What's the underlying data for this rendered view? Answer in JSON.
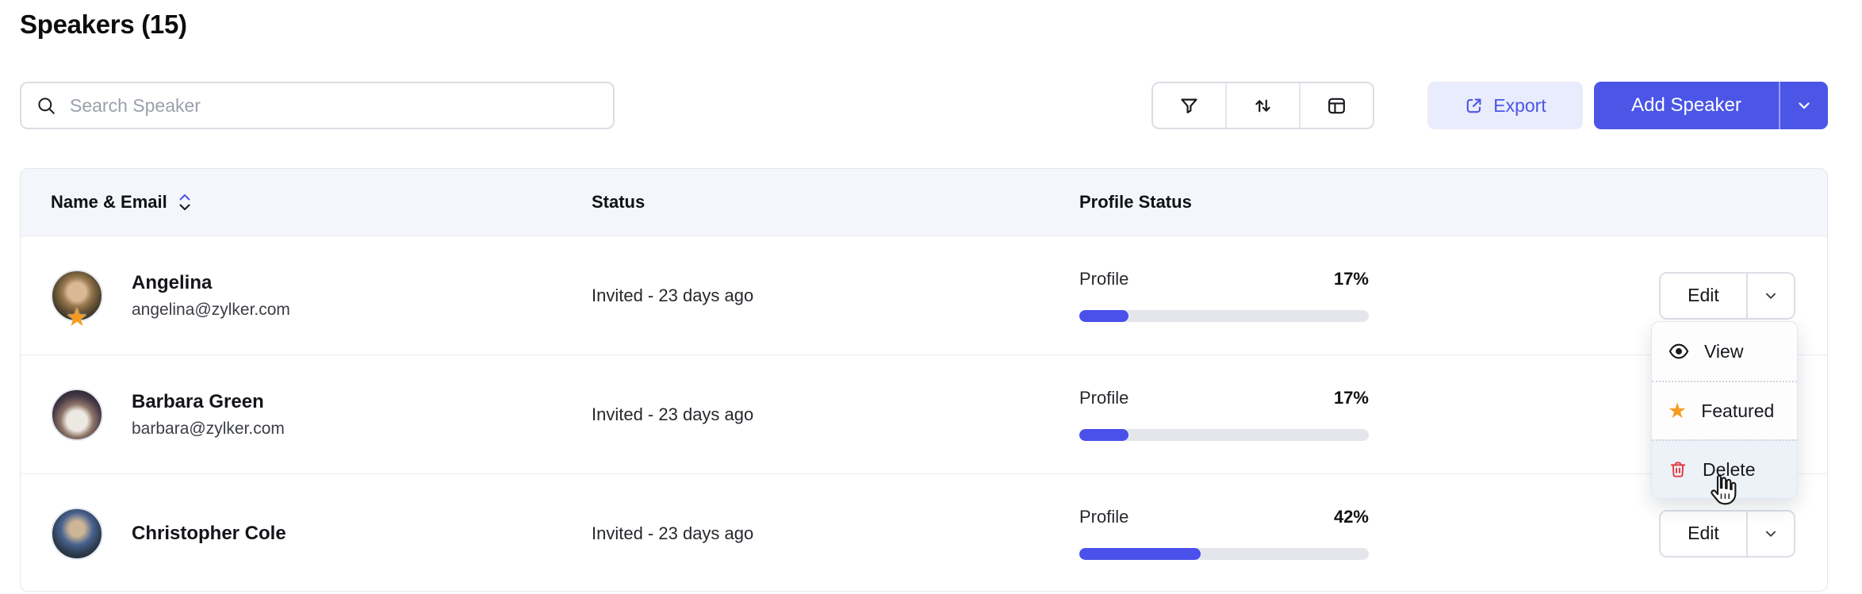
{
  "page": {
    "title": "Speakers (15)"
  },
  "toolbar": {
    "search_placeholder": "Search Speaker",
    "search_value": "",
    "filter_icon": "funnel-icon",
    "sort_icon": "sort-arrows-icon",
    "columns_icon": "columns-icon",
    "export_label": "Export",
    "add_speaker_label": "Add Speaker"
  },
  "table": {
    "columns": [
      {
        "label": "Name & Email",
        "sortable": true,
        "sort_state": "asc"
      },
      {
        "label": "Status"
      },
      {
        "label": "Profile Status"
      },
      {
        "label": ""
      }
    ],
    "rows": [
      {
        "name": "Angelina",
        "email": "angelina@zylker.com",
        "featured": true,
        "status": "Invited - 23 days ago",
        "profile_label": "Profile",
        "profile_percent": "17%",
        "progress": 17,
        "action_label": "Edit"
      },
      {
        "name": "Barbara Green",
        "email": "barbara@zylker.com",
        "featured": false,
        "status": "Invited - 23 days ago",
        "profile_label": "Profile",
        "profile_percent": "17%",
        "progress": 17,
        "action_label": "Edit"
      },
      {
        "name": "Christopher Cole",
        "email": "",
        "featured": false,
        "status": "Invited - 23 days ago",
        "profile_label": "Profile",
        "profile_percent": "42%",
        "progress": 42,
        "action_label": "Edit"
      }
    ]
  },
  "context_menu": {
    "open_for_row": "Barbara Green",
    "items": [
      {
        "label": "View",
        "icon": "eye-icon",
        "highlighted": false
      },
      {
        "label": "Featured",
        "icon": "star-icon",
        "highlighted": false
      },
      {
        "label": "Delete",
        "icon": "trash-icon",
        "highlighted": true
      }
    ]
  },
  "cursor": {
    "type": "hand-pointer",
    "over": "Delete"
  },
  "colors": {
    "accent": "#4B55E6",
    "accent_soft": "#E9ECFC",
    "progress_fill": "#4A50EA",
    "progress_track": "#E4E6EB",
    "star_orange": "#F79B1F",
    "danger_red": "#E2383F",
    "header_bg": "#F4F6FB",
    "menu_hover_bg": "#EDF1F8"
  }
}
